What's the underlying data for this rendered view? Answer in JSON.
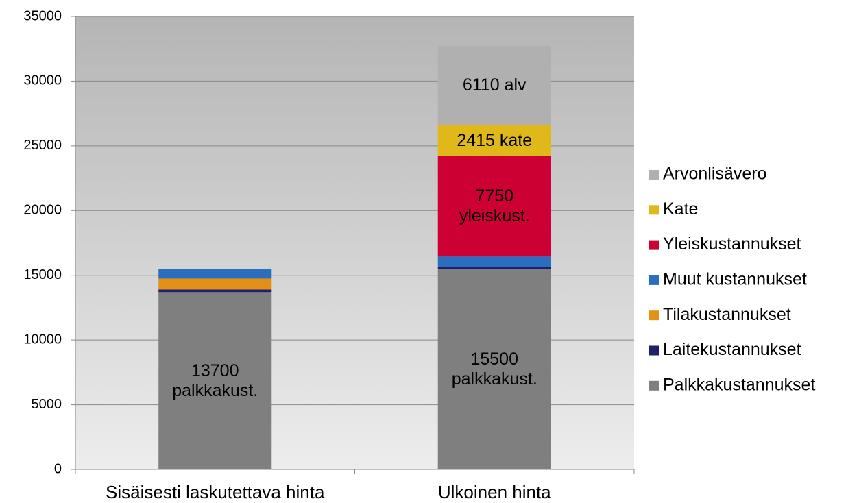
{
  "chart_data": {
    "type": "stacked_bar",
    "categories": [
      "Sisäisesti laskutettava hinta",
      "Ulkoinen hinta"
    ],
    "series": [
      {
        "name": "Palkkakustannukset",
        "color": "#7f7f7f",
        "values": [
          13700,
          15500
        ],
        "value_labels": [
          "13700 palkkakust.",
          "15500 palkkakust."
        ]
      },
      {
        "name": "Laitekustannukset",
        "color": "#1f1f6e",
        "values": [
          200,
          150
        ]
      },
      {
        "name": "Tilakustannukset",
        "color": "#e39018",
        "values": [
          850,
          0
        ]
      },
      {
        "name": "Muut kustannukset",
        "color": "#2a6ebf",
        "values": [
          750,
          800
        ]
      },
      {
        "name": "Yleiskustannukset",
        "color": "#cc0033",
        "values": [
          0,
          7750
        ],
        "value_labels": [
          null,
          "7750 yleiskust."
        ]
      },
      {
        "name": "Kate",
        "color": "#e0b81a",
        "values": [
          0,
          2415
        ],
        "value_labels": [
          null,
          "2415 kate"
        ]
      },
      {
        "name": "Arvonlisävero",
        "color": "#b0b0b0",
        "values": [
          0,
          6110
        ],
        "value_labels": [
          null,
          "6110 alv"
        ]
      }
    ],
    "ylim": [
      0,
      35000
    ],
    "yticks": [
      0,
      5000,
      10000,
      15000,
      20000,
      25000,
      30000,
      35000
    ],
    "grid": true,
    "legend": "right"
  }
}
